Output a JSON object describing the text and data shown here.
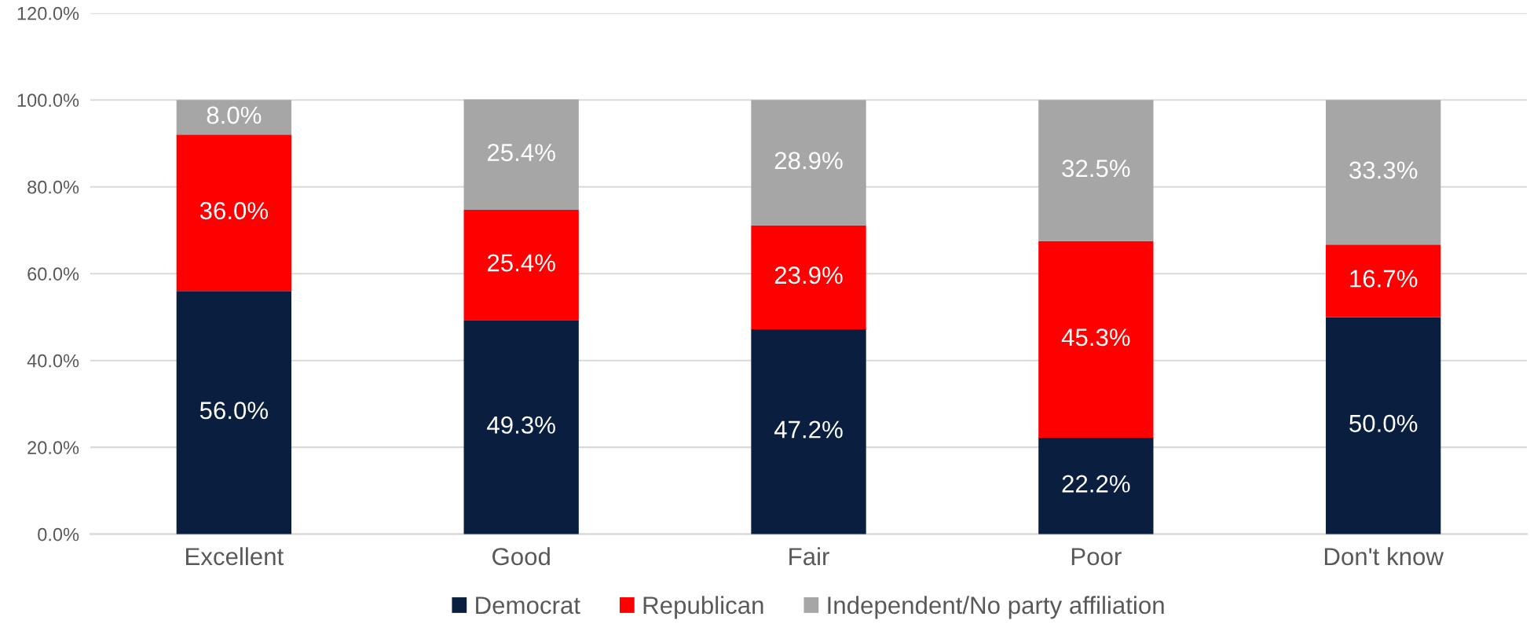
{
  "chart_data": {
    "type": "bar",
    "stacked": true,
    "categories": [
      "Excellent",
      "Good",
      "Fair",
      "Poor",
      "Don't know"
    ],
    "series": [
      {
        "name": "Democrat",
        "color": "#0a1f3f",
        "values": [
          56.0,
          49.3,
          47.2,
          22.2,
          50.0
        ],
        "value_labels": [
          "56.0%",
          "49.3%",
          "47.2%",
          "22.2%",
          "50.0%"
        ]
      },
      {
        "name": "Republican",
        "color": "#ff0000",
        "values": [
          36.0,
          25.4,
          23.9,
          45.3,
          16.7
        ],
        "value_labels": [
          "36.0%",
          "25.4%",
          "23.9%",
          "45.3%",
          "16.7%"
        ]
      },
      {
        "name": "Independent/No party affiliation",
        "color": "#a6a6a6",
        "values": [
          8.0,
          25.4,
          28.9,
          32.5,
          33.3
        ],
        "value_labels": [
          "8.0%",
          "25.4%",
          "28.9%",
          "32.5%",
          "33.3%"
        ]
      }
    ],
    "ylim": [
      0,
      120
    ],
    "yticks": [
      {
        "value": 0,
        "label": "0.0%"
      },
      {
        "value": 20,
        "label": "20.0%"
      },
      {
        "value": 40,
        "label": "40.0%"
      },
      {
        "value": 60,
        "label": "60.0%"
      },
      {
        "value": 80,
        "label": "80.0%"
      },
      {
        "value": 100,
        "label": "100.0%"
      },
      {
        "value": 120,
        "label": "120.0%"
      }
    ],
    "grid": "y",
    "legend": "bottom"
  }
}
